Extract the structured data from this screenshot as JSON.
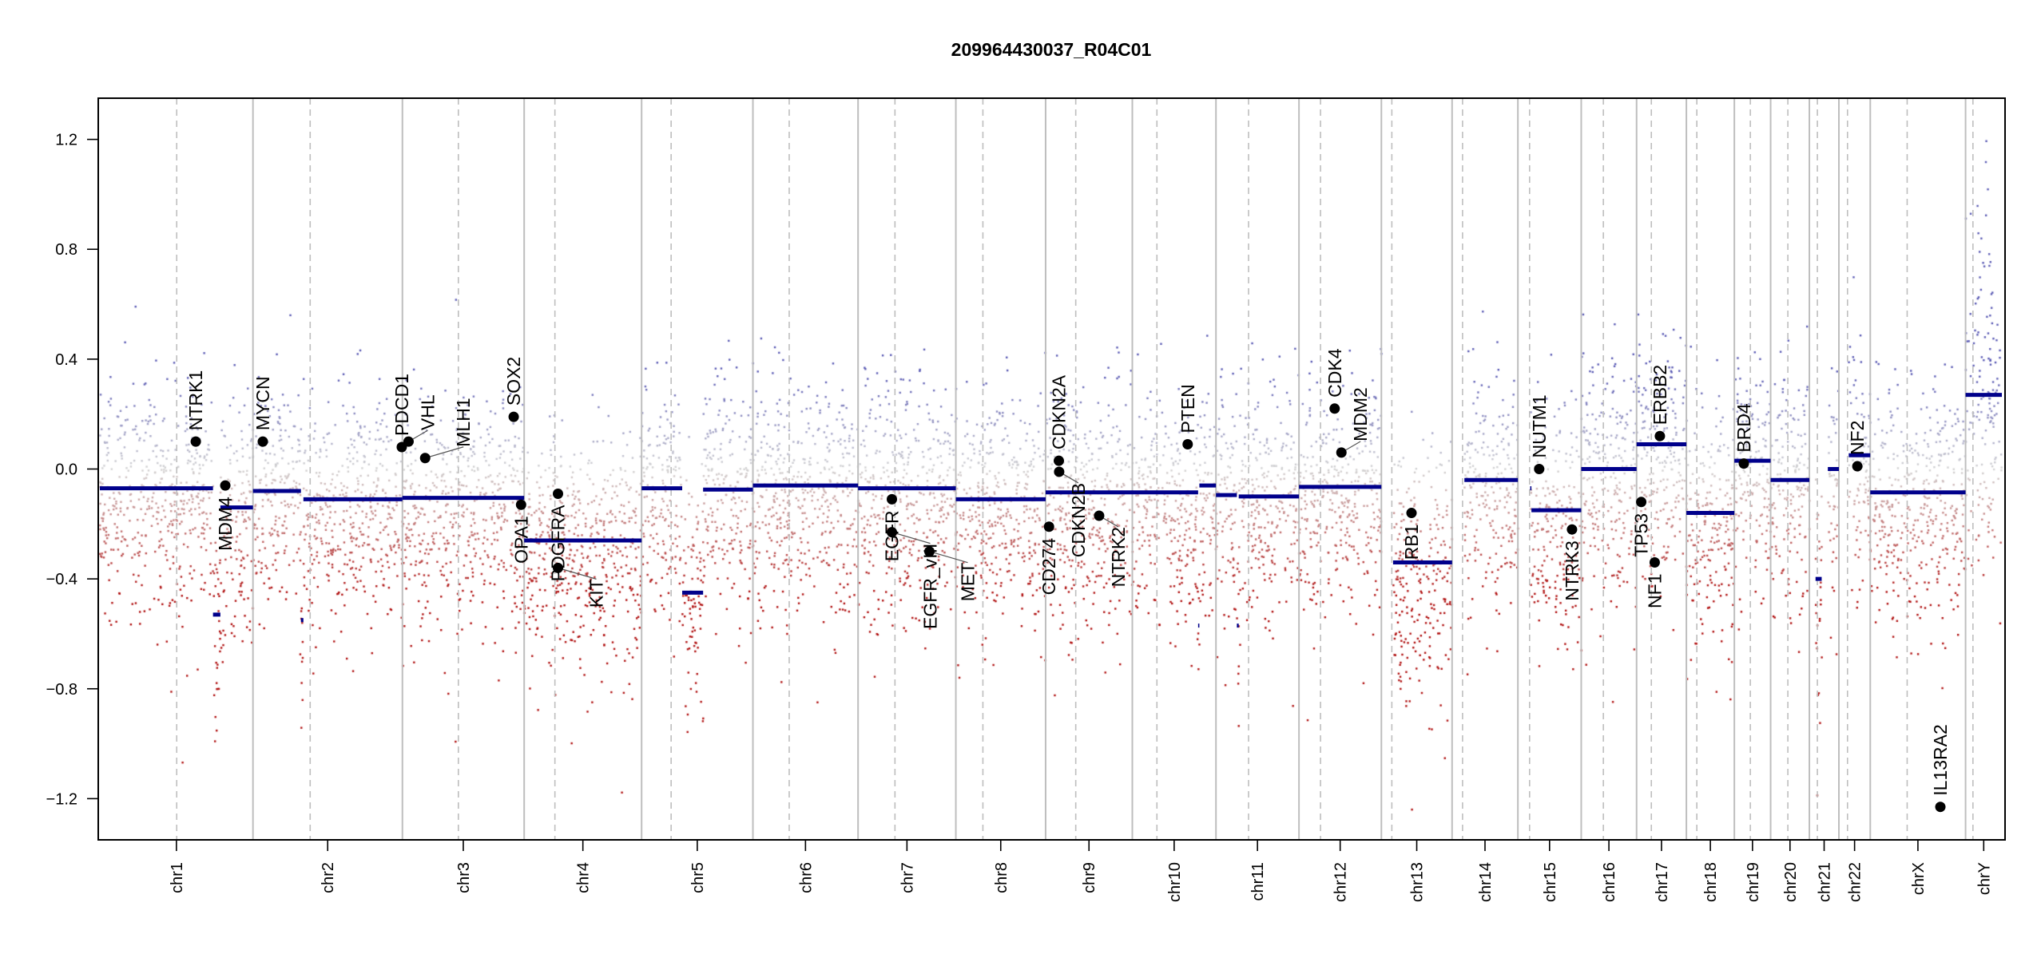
{
  "chart_data": {
    "type": "scatter",
    "title": "209964430037_R04C01",
    "xlabel": "",
    "ylabel": "",
    "ylim": [
      -1.35,
      1.35
    ],
    "yticks": [
      -1.2,
      -0.8,
      -0.4,
      0.0,
      0.4,
      0.8,
      1.2
    ],
    "ytick_labels": [
      "−1.2",
      "−0.8",
      "−0.4",
      "0.0",
      "0.4",
      "0.8",
      "1.2"
    ],
    "grid": false,
    "colors": {
      "segment": "#00008B",
      "gain": "#5A5AB4",
      "neutral": "#D3D3D3",
      "loss": "#B01010",
      "boundary": "#BEBEBE",
      "gene_point": "#000000"
    },
    "chromosomes": [
      {
        "name": "chr1",
        "length_mb": 249,
        "centromere_mb": 125
      },
      {
        "name": "chr2",
        "length_mb": 243,
        "centromere_mb": 93
      },
      {
        "name": "chr3",
        "length_mb": 198,
        "centromere_mb": 91
      },
      {
        "name": "chr4",
        "length_mb": 191,
        "centromere_mb": 50
      },
      {
        "name": "chr5",
        "length_mb": 181,
        "centromere_mb": 48
      },
      {
        "name": "chr6",
        "length_mb": 171,
        "centromere_mb": 59
      },
      {
        "name": "chr7",
        "length_mb": 159,
        "centromere_mb": 60
      },
      {
        "name": "chr8",
        "length_mb": 146,
        "centromere_mb": 44
      },
      {
        "name": "chr9",
        "length_mb": 141,
        "centromere_mb": 49
      },
      {
        "name": "chr10",
        "length_mb": 136,
        "centromere_mb": 40
      },
      {
        "name": "chr11",
        "length_mb": 135,
        "centromere_mb": 53
      },
      {
        "name": "chr12",
        "length_mb": 134,
        "centromere_mb": 35
      },
      {
        "name": "chr13",
        "length_mb": 115,
        "centromere_mb": 17
      },
      {
        "name": "chr14",
        "length_mb": 107,
        "centromere_mb": 17
      },
      {
        "name": "chr15",
        "length_mb": 103,
        "centromere_mb": 19
      },
      {
        "name": "chr16",
        "length_mb": 90,
        "centromere_mb": 36
      },
      {
        "name": "chr17",
        "length_mb": 81,
        "centromere_mb": 24
      },
      {
        "name": "chr18",
        "length_mb": 78,
        "centromere_mb": 17
      },
      {
        "name": "chr19",
        "length_mb": 59,
        "centromere_mb": 26
      },
      {
        "name": "chr20",
        "length_mb": 63,
        "centromere_mb": 28
      },
      {
        "name": "chr21",
        "length_mb": 48,
        "centromere_mb": 13
      },
      {
        "name": "chr22",
        "length_mb": 51,
        "centromere_mb": 14
      },
      {
        "name": "chrX",
        "length_mb": 155,
        "centromere_mb": 60
      },
      {
        "name": "chrY",
        "length_mb": 59,
        "centromere_mb": 12
      }
    ],
    "segments": [
      {
        "chr": "chr1",
        "start": 0,
        "end": 184,
        "value": -0.07
      },
      {
        "chr": "chr1",
        "start": 184,
        "end": 196,
        "value": -0.53
      },
      {
        "chr": "chr1",
        "start": 196,
        "end": 249,
        "value": -0.14
      },
      {
        "chr": "chr2",
        "start": 0,
        "end": 78,
        "value": -0.08
      },
      {
        "chr": "chr2",
        "start": 78,
        "end": 82,
        "value": -0.55
      },
      {
        "chr": "chr2",
        "start": 82,
        "end": 243,
        "value": -0.11
      },
      {
        "chr": "chr3",
        "start": 0,
        "end": 198,
        "value": -0.105
      },
      {
        "chr": "chr4",
        "start": 0,
        "end": 191,
        "value": -0.26
      },
      {
        "chr": "chr5",
        "start": 0,
        "end": 66,
        "value": -0.07
      },
      {
        "chr": "chr5",
        "start": 66,
        "end": 100,
        "value": -0.45
      },
      {
        "chr": "chr5",
        "start": 100,
        "end": 181,
        "value": -0.075
      },
      {
        "chr": "chr6",
        "start": 0,
        "end": 171,
        "value": -0.06
      },
      {
        "chr": "chr7",
        "start": 0,
        "end": 159,
        "value": -0.07
      },
      {
        "chr": "chr8",
        "start": 0,
        "end": 146,
        "value": -0.11
      },
      {
        "chr": "chr9",
        "start": 0,
        "end": 141,
        "value": -0.085
      },
      {
        "chr": "chr10",
        "start": 0,
        "end": 107,
        "value": -0.085
      },
      {
        "chr": "chr10",
        "start": 107,
        "end": 109,
        "value": -0.57
      },
      {
        "chr": "chr10",
        "start": 109,
        "end": 136,
        "value": -0.06
      },
      {
        "chr": "chr11",
        "start": 0,
        "end": 34,
        "value": -0.095
      },
      {
        "chr": "chr11",
        "start": 34,
        "end": 37,
        "value": -0.57
      },
      {
        "chr": "chr11",
        "start": 37,
        "end": 135,
        "value": -0.1
      },
      {
        "chr": "chr12",
        "start": 0,
        "end": 134,
        "value": -0.065
      },
      {
        "chr": "chr13",
        "start": 19,
        "end": 115,
        "value": -0.34
      },
      {
        "chr": "chr14",
        "start": 20,
        "end": 107,
        "value": -0.04
      },
      {
        "chr": "chr15",
        "start": 20,
        "end": 22,
        "value": -0.07
      },
      {
        "chr": "chr15",
        "start": 22,
        "end": 103,
        "value": -0.15
      },
      {
        "chr": "chr16",
        "start": 0,
        "end": 90,
        "value": 0.0
      },
      {
        "chr": "chr17",
        "start": 0,
        "end": 81,
        "value": 0.09
      },
      {
        "chr": "chr18",
        "start": 0,
        "end": 78,
        "value": -0.16
      },
      {
        "chr": "chr19",
        "start": 0,
        "end": 59,
        "value": 0.03
      },
      {
        "chr": "chr20",
        "start": 0,
        "end": 63,
        "value": -0.04
      },
      {
        "chr": "chr21",
        "start": 10,
        "end": 20,
        "value": -0.4
      },
      {
        "chr": "chr21",
        "start": 30,
        "end": 48,
        "value": 0.0
      },
      {
        "chr": "chr22",
        "start": 16,
        "end": 51,
        "value": 0.05
      },
      {
        "chr": "chrX",
        "start": 0,
        "end": 155,
        "value": -0.085
      },
      {
        "chr": "chrY",
        "start": 0,
        "end": 59,
        "value": 0.27
      }
    ],
    "genes": [
      {
        "name": "NTRK1",
        "chr": "chr1",
        "pos": 156,
        "value": 0.1,
        "label": "above"
      },
      {
        "name": "MDM4",
        "chr": "chr1",
        "pos": 204,
        "value": -0.06,
        "label": "below"
      },
      {
        "name": "MYCN",
        "chr": "chr2",
        "pos": 16,
        "value": 0.1,
        "label": "above"
      },
      {
        "name": "PDCD1",
        "chr": "chr2",
        "pos": 242,
        "value": 0.08,
        "label": "above"
      },
      {
        "name": "VHL",
        "chr": "chr3",
        "pos": 10,
        "value": 0.1,
        "label": "above"
      },
      {
        "name": "MLH1",
        "chr": "chr3",
        "pos": 37,
        "value": 0.04,
        "label": "above"
      },
      {
        "name": "SOX2",
        "chr": "chr3",
        "pos": 181,
        "value": 0.19,
        "label": "above"
      },
      {
        "name": "OPA1",
        "chr": "chr3",
        "pos": 193,
        "value": -0.13,
        "label": "below"
      },
      {
        "name": "PDGFRA",
        "chr": "chr4",
        "pos": 55,
        "value": -0.09,
        "label": "below"
      },
      {
        "name": "KIT",
        "chr": "chr4",
        "pos": 55,
        "value": -0.36,
        "label": "below"
      },
      {
        "name": "EGFR",
        "chr": "chr7",
        "pos": 55,
        "value": -0.11,
        "label": "below"
      },
      {
        "name": "EGFR_vIII",
        "chr": "chr7",
        "pos": 55,
        "value": -0.23,
        "label": "below"
      },
      {
        "name": "MET",
        "chr": "chr7",
        "pos": 116,
        "value": -0.3,
        "label": "below"
      },
      {
        "name": "CD274",
        "chr": "chr9",
        "pos": 5.5,
        "value": -0.21,
        "label": "below"
      },
      {
        "name": "CDKN2A",
        "chr": "chr9",
        "pos": 21.5,
        "value": 0.03,
        "label": "above"
      },
      {
        "name": "CDKN2B",
        "chr": "chr9",
        "pos": 22,
        "value": -0.01,
        "label": "below"
      },
      {
        "name": "NTRK2",
        "chr": "chr9",
        "pos": 87,
        "value": -0.17,
        "label": "below"
      },
      {
        "name": "PTEN",
        "chr": "chr10",
        "pos": 90,
        "value": 0.09,
        "label": "above"
      },
      {
        "name": "CDK4",
        "chr": "chr12",
        "pos": 58,
        "value": 0.22,
        "label": "above"
      },
      {
        "name": "MDM2",
        "chr": "chr12",
        "pos": 69,
        "value": 0.06,
        "label": "above"
      },
      {
        "name": "RB1",
        "chr": "chr13",
        "pos": 49,
        "value": -0.16,
        "label": "below"
      },
      {
        "name": "NUTM1",
        "chr": "chr15",
        "pos": 34.6,
        "value": 0.0,
        "label": "above"
      },
      {
        "name": "NTRK3",
        "chr": "chr15",
        "pos": 88,
        "value": -0.22,
        "label": "below"
      },
      {
        "name": "TP53",
        "chr": "chr17",
        "pos": 7.6,
        "value": -0.12,
        "label": "below"
      },
      {
        "name": "NF1",
        "chr": "chr17",
        "pos": 29.5,
        "value": -0.34,
        "label": "below"
      },
      {
        "name": "ERBB2",
        "chr": "chr17",
        "pos": 37.9,
        "value": 0.12,
        "label": "above"
      },
      {
        "name": "BRD4",
        "chr": "chr19",
        "pos": 15.4,
        "value": 0.02,
        "label": "above"
      },
      {
        "name": "NF2",
        "chr": "chr22",
        "pos": 30,
        "value": 0.01,
        "label": "above"
      },
      {
        "name": "IL13RA2",
        "chr": "chrX",
        "pos": 114,
        "value": -1.23,
        "label": "above"
      }
    ]
  }
}
